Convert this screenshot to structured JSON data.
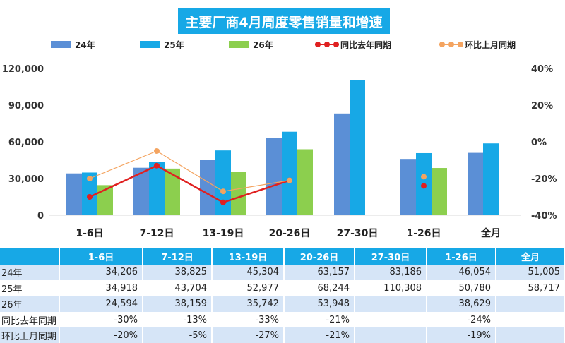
{
  "chart_data": {
    "type": "bar",
    "title": "主要厂商4月周度零售销量和增速",
    "categories": [
      "1-6日",
      "7-12日",
      "13-19日",
      "20-26日",
      "27-30日",
      "1-26日",
      "全月"
    ],
    "series": [
      {
        "name": "24年",
        "type": "bar",
        "color": "#5b8fd6",
        "values": [
          34206,
          38825,
          45304,
          63157,
          83186,
          46054,
          51005
        ]
      },
      {
        "name": "25年",
        "type": "bar",
        "color": "#17a8e6",
        "values": [
          34918,
          43704,
          52977,
          68244,
          110308,
          50780,
          58717
        ]
      },
      {
        "name": "26年",
        "type": "bar",
        "color": "#8ccf4e",
        "values": [
          24594,
          38159,
          35742,
          53948,
          null,
          38629,
          null
        ]
      },
      {
        "name": "同比去年同期",
        "type": "line",
        "axis": "right",
        "color": "#e02020",
        "values": [
          -30,
          -13,
          -33,
          -21,
          null,
          -24,
          null
        ]
      },
      {
        "name": "环比上月同期",
        "type": "line",
        "axis": "right",
        "color": "#f4a460",
        "values": [
          -20,
          -5,
          -27,
          -21,
          null,
          -19,
          null
        ]
      }
    ],
    "y_left": {
      "ylim": [
        0,
        120000
      ],
      "ticks": [
        "0",
        "30,000",
        "60,000",
        "90,000",
        "120,000"
      ]
    },
    "y_right": {
      "ylim": [
        -40,
        40
      ],
      "ticks": [
        "-40%",
        "-20%",
        "0%",
        "20%",
        "40%"
      ]
    },
    "legend_position": "top",
    "grid": false
  },
  "table": {
    "headers": [
      "1-6日",
      "7-12日",
      "13-19日",
      "20-26日",
      "27-30日",
      "1-26日",
      "全月"
    ],
    "rows": [
      {
        "label": "24年",
        "cells": [
          "34,206",
          "38,825",
          "45,304",
          "63,157",
          "83,186",
          "46,054",
          "51,005"
        ]
      },
      {
        "label": "25年",
        "cells": [
          "34,918",
          "43,704",
          "52,977",
          "68,244",
          "110,308",
          "50,780",
          "58,717"
        ]
      },
      {
        "label": "26年",
        "cells": [
          "24,594",
          "38,159",
          "35,742",
          "53,948",
          "",
          "38,629",
          ""
        ]
      },
      {
        "label": "同比去年同期",
        "cells": [
          "-30%",
          "-13%",
          "-33%",
          "-21%",
          "",
          "-24%",
          ""
        ]
      },
      {
        "label": "环比上月同期",
        "cells": [
          "-20%",
          "-5%",
          "-27%",
          "-21%",
          "",
          "-19%",
          ""
        ]
      }
    ]
  }
}
